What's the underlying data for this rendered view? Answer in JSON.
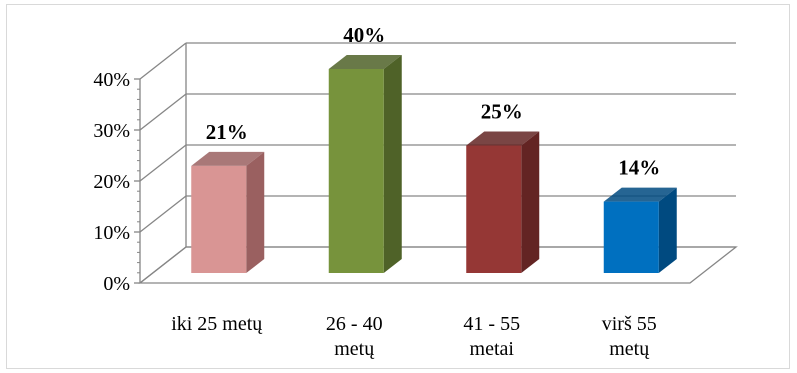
{
  "chart_data": {
    "type": "bar",
    "style": "3d-clustered-column",
    "categories": [
      [
        "iki 25 metų"
      ],
      [
        "26 - 40",
        "metų"
      ],
      [
        "41 - 55",
        "metai"
      ],
      [
        "virš 55",
        "metų"
      ]
    ],
    "values": [
      21,
      40,
      25,
      14
    ],
    "data_labels": [
      "21%",
      "40%",
      "25%",
      "14%"
    ],
    "colors": [
      "#d99594",
      "#77933c",
      "#953735",
      "#0070c0"
    ],
    "side_colors": [
      "#9a6060",
      "#4f6228",
      "#632423",
      "#004a80"
    ],
    "ylim": [
      0,
      40
    ],
    "yticks": [
      0,
      10,
      20,
      30,
      40
    ],
    "ytick_labels": [
      "0%",
      "10%",
      "20%",
      "30%",
      "40%"
    ],
    "grid": true,
    "legend": "none"
  }
}
